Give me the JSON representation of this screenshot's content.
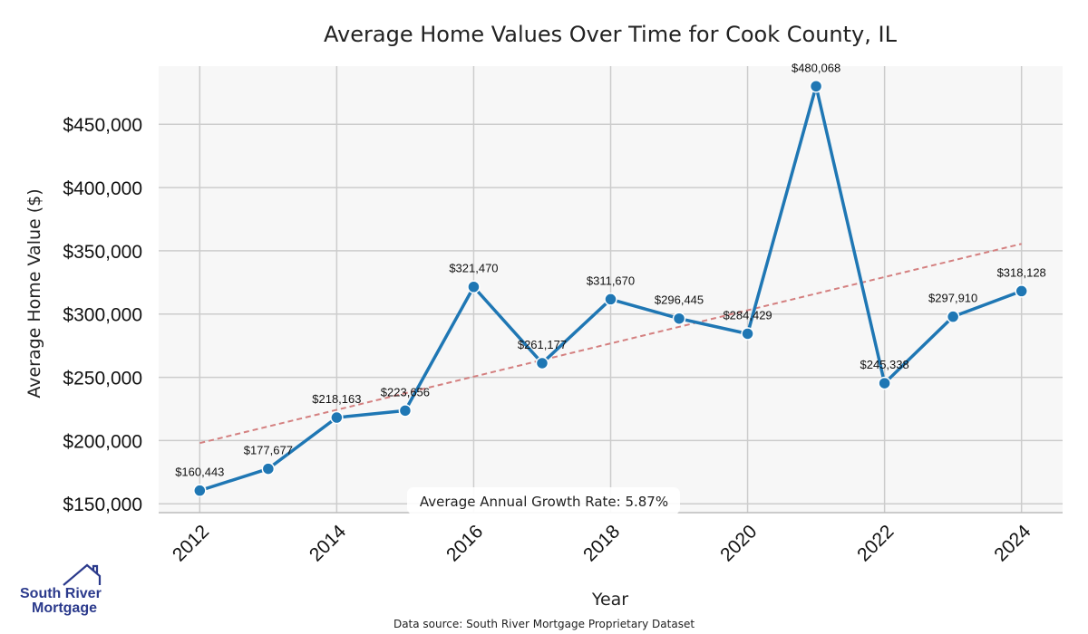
{
  "chart_data": {
    "type": "line",
    "title": "Average Home Values Over Time for Cook County, IL",
    "xlabel": "Year",
    "ylabel": "Average Home Value ($)",
    "x": [
      2012,
      2013,
      2014,
      2015,
      2016,
      2017,
      2018,
      2019,
      2020,
      2021,
      2022,
      2023,
      2024
    ],
    "values": [
      160443,
      177677,
      218163,
      223656,
      321470,
      261177,
      311670,
      296445,
      284429,
      480068,
      245338,
      297910,
      318128
    ],
    "data_labels": [
      "$160,443",
      "$177,677",
      "$218,163",
      "$223,656",
      "$321,470",
      "$261,177",
      "$311,670",
      "$296,445",
      "$284,429",
      "$480,068",
      "$245,338",
      "$297,910",
      "$318,128"
    ],
    "xticks": [
      "2012",
      "2014",
      "2016",
      "2018",
      "2020",
      "2022",
      "2024"
    ],
    "xtick_values": [
      2012,
      2014,
      2016,
      2018,
      2020,
      2022,
      2024
    ],
    "yticks": [
      "$150,000",
      "$200,000",
      "$250,000",
      "$300,000",
      "$350,000",
      "$400,000",
      "$450,000"
    ],
    "ytick_values": [
      150000,
      200000,
      250000,
      300000,
      350000,
      400000,
      450000
    ],
    "ylim": [
      143000,
      496000
    ],
    "xlim": [
      2011.4,
      2024.6
    ],
    "trend": {
      "start": [
        2012,
        198000
      ],
      "end": [
        2024,
        355500
      ]
    },
    "annotation": "Average Annual Growth Rate: 5.87%",
    "grid": true,
    "colors": {
      "line": "#1f77b4",
      "trend": "#d48080",
      "plot_bg": "#f7f7f7",
      "grid": "#cccccc"
    }
  },
  "footer": {
    "source": "Data source: South River Mortgage Proprietary Dataset",
    "logo_line1": "South River",
    "logo_line2": "Mortgage"
  }
}
